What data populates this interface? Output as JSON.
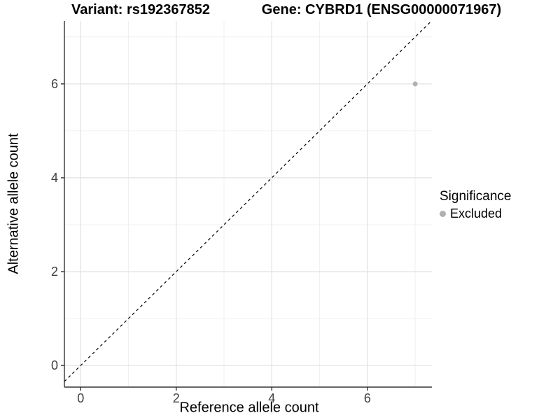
{
  "figure": {
    "title_left": "Variant: rs192367852",
    "title_right": "Gene: CYBRD1 (ENSG00000071967)",
    "x_axis": {
      "label": "Reference allele count",
      "tick_labels": [
        "0",
        "2",
        "4",
        "6"
      ]
    },
    "y_axis": {
      "label": "Alternative allele count",
      "tick_labels": [
        "0",
        "2",
        "4",
        "6"
      ]
    },
    "legend": {
      "title": "Significance",
      "items": [
        {
          "label": "Excluded",
          "color": "#b0b0b0"
        }
      ]
    }
  },
  "chart_data": {
    "type": "scatter",
    "titles": [
      "Variant: rs192367852",
      "Gene: CYBRD1 (ENSG00000071967)"
    ],
    "xlabel": "Reference allele count",
    "ylabel": "Alternative allele count",
    "xlim": [
      -0.34,
      7.35
    ],
    "ylim": [
      -0.46,
      7.34
    ],
    "x_ticks": [
      0,
      2,
      4,
      6
    ],
    "y_ticks": [
      0,
      2,
      4,
      6
    ],
    "x_minor_ticks": [
      1,
      3,
      5,
      7
    ],
    "y_minor_ticks": [
      1,
      3,
      5,
      7
    ],
    "grid": "major+minor",
    "legend_position": "right",
    "legend_title": "Significance",
    "series": [
      {
        "name": "Excluded",
        "color": "#b0b0b0",
        "marker_size": 3.5,
        "points": [
          [
            7,
            6
          ]
        ]
      }
    ],
    "annotations": [
      {
        "type": "abline",
        "slope": 1,
        "intercept": 0,
        "linestyle": "dashed",
        "color": "#000000"
      }
    ],
    "colors": {
      "grid_major": "#e4e4e4",
      "grid_minor": "#f0f0f0",
      "axis_line": "#333333",
      "point": "#b0b0b0"
    }
  }
}
